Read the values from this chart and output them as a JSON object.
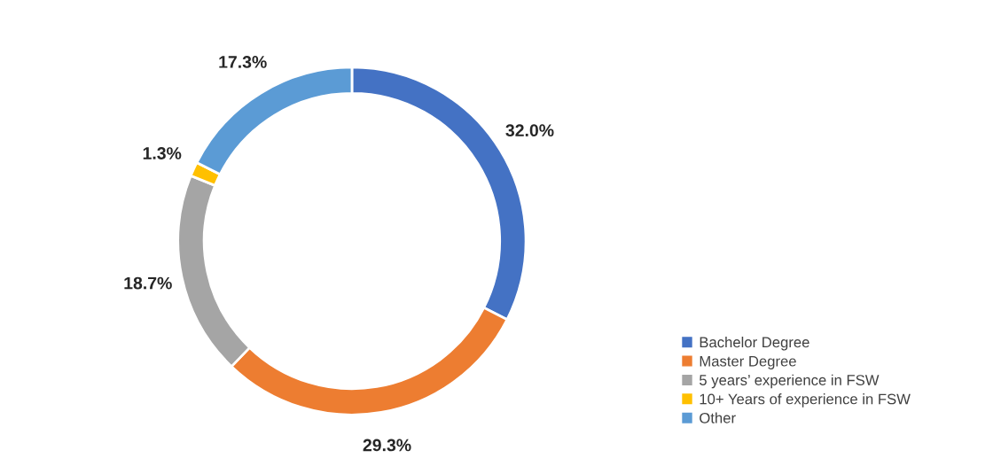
{
  "chart_data": {
    "type": "donut",
    "categories": [
      "Bachelor Degree",
      "Master Degree",
      "5 years’ experience in FSW",
      "10+ Years of experience in FSW",
      "Other"
    ],
    "values": [
      32.0,
      29.3,
      18.7,
      1.3,
      17.3
    ],
    "value_labels": [
      "32.0%",
      "29.3%",
      "18.7%",
      "1.3%",
      "17.3%"
    ],
    "colors": [
      "#4472c4",
      "#ed7d31",
      "#a5a5a5",
      "#ffc000",
      "#5b9bd5"
    ],
    "legend": "bottom right"
  }
}
